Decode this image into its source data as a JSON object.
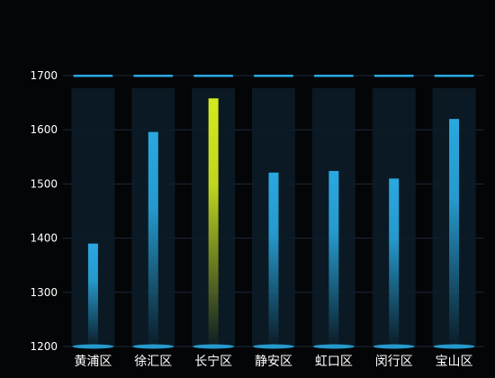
{
  "chart_data": {
    "type": "bar",
    "categories": [
      "黄浦区",
      "徐汇区",
      "长宁区",
      "静安区",
      "虹口区",
      "闵行区",
      "宝山区"
    ],
    "values": [
      1390,
      1596,
      1658,
      1521,
      1524,
      1510,
      1620
    ],
    "highlight_index": 2,
    "ylim": [
      1200,
      1700
    ],
    "yticks": [
      1200,
      1300,
      1400,
      1500,
      1600,
      1700
    ],
    "background_max": 1700,
    "grid": true,
    "colors": {
      "bar": "#29a8e0",
      "bar_highlight": "#d4ea1f",
      "track": "#0c1d28",
      "cap": "#29a8e0",
      "grid": "#1c2a3a",
      "axis": "#1f5f86",
      "background": "#040507"
    }
  }
}
